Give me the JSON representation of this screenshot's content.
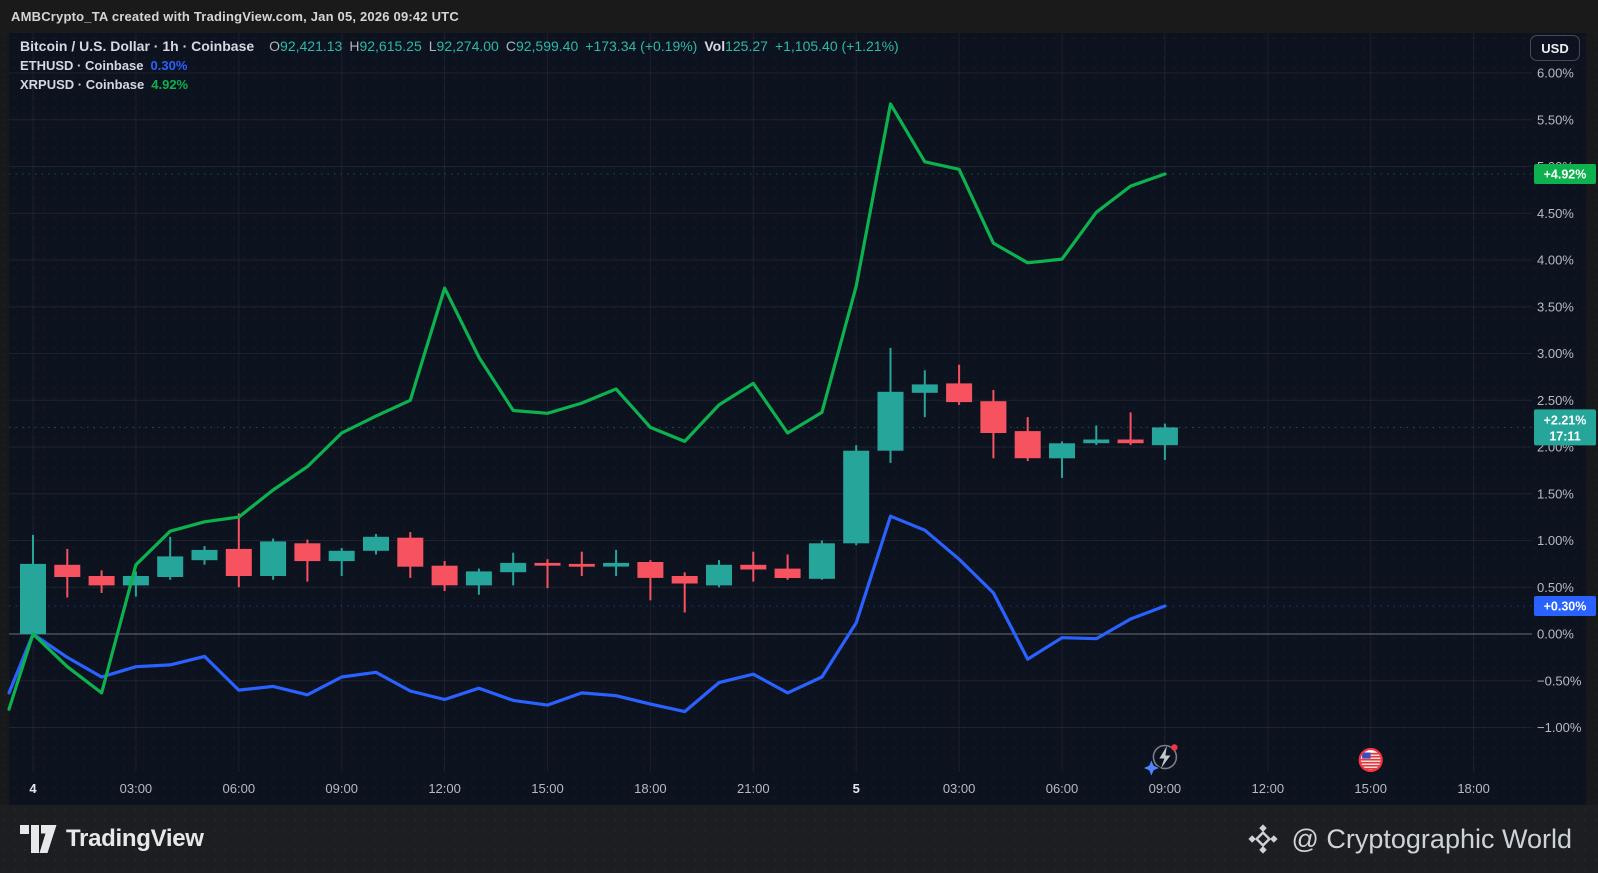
{
  "topbar": {
    "text": "AMBCrypto_TA created with TradingView.com, Jan 05, 2026 09:42 UTC"
  },
  "legend": {
    "symbol": "Bitcoin / U.S. Dollar · 1h · Coinbase",
    "ohlc": [
      {
        "k": "O",
        "v": "92,421.13"
      },
      {
        "k": "H",
        "v": "92,615.25"
      },
      {
        "k": "L",
        "v": "92,274.00"
      },
      {
        "k": "C",
        "v": "92,599.40"
      }
    ],
    "change": "+173.34 (+0.19%)",
    "vol_label": "Vol",
    "vol_value": "125.27",
    "vol_change": "+1,105.40 (+1.21%)",
    "compares": [
      {
        "symbol": "ETHUSD · Coinbase",
        "value": "0.30%",
        "color": "#2962ff"
      },
      {
        "symbol": "XRPUSD · Coinbase",
        "value": "4.92%",
        "color": "#0db24f"
      }
    ]
  },
  "currency_button": "USD",
  "price_axis": {
    "ticks": [
      {
        "label": "6.00%",
        "value": 6.0
      },
      {
        "label": "5.50%",
        "value": 5.5
      },
      {
        "label": "5.00%",
        "value": 5.0
      },
      {
        "label": "4.50%",
        "value": 4.5
      },
      {
        "label": "4.00%",
        "value": 4.0
      },
      {
        "label": "3.50%",
        "value": 3.5
      },
      {
        "label": "3.00%",
        "value": 3.0
      },
      {
        "label": "2.50%",
        "value": 2.5
      },
      {
        "label": "2.00%",
        "value": 2.0
      },
      {
        "label": "1.50%",
        "value": 1.5
      },
      {
        "label": "1.00%",
        "value": 1.0
      },
      {
        "label": "0.50%",
        "value": 0.5
      },
      {
        "label": "0.00%",
        "value": 0.0
      },
      {
        "label": "−0.50%",
        "value": -0.5
      },
      {
        "label": "−1.00%",
        "value": -1.0
      }
    ]
  },
  "time_axis": {
    "labels": [
      {
        "label": "4",
        "hour": 0,
        "major": true
      },
      {
        "label": "03:00",
        "hour": 3
      },
      {
        "label": "06:00",
        "hour": 6
      },
      {
        "label": "09:00",
        "hour": 9
      },
      {
        "label": "12:00",
        "hour": 12
      },
      {
        "label": "15:00",
        "hour": 15
      },
      {
        "label": "18:00",
        "hour": 18
      },
      {
        "label": "21:00",
        "hour": 21
      },
      {
        "label": "5",
        "hour": 24,
        "major": true
      },
      {
        "label": "03:00",
        "hour": 27
      },
      {
        "label": "06:00",
        "hour": 30
      },
      {
        "label": "09:00",
        "hour": 33
      },
      {
        "label": "12:00",
        "hour": 36
      },
      {
        "label": "15:00",
        "hour": 39
      },
      {
        "label": "18:00",
        "hour": 42
      }
    ]
  },
  "price_badges": [
    {
      "lines": [
        "+4.92%"
      ],
      "value": 4.92,
      "color": "#0db24f"
    },
    {
      "lines": [
        "+2.21%",
        "17:11"
      ],
      "value": 2.21,
      "color": "#26a69a"
    },
    {
      "lines": [
        "+0.30%"
      ],
      "value": 0.3,
      "color": "#2962ff"
    }
  ],
  "events": [
    {
      "icon": "flash-event-icon",
      "hour": 33
    },
    {
      "icon": "us-flag-icon",
      "hour": 39
    }
  ],
  "footer": {
    "brand": "TradingView",
    "credit": "@ Cryptographic World"
  },
  "chart_data": {
    "type": "candlestick_with_compare_lines",
    "title": "Bitcoin / U.S. Dollar · 1h · Coinbase vs ETHUSD and XRPUSD",
    "scale": "percent_change",
    "interval_minutes": 60,
    "first_bar_label": "4 (00:00)",
    "last_bar_label": "5 09:00",
    "ylim": [
      -1.35,
      6.15
    ],
    "grid": true,
    "candles": {
      "name": "BTCUSD",
      "up_color": "#26a69a",
      "down_color": "#f7525f",
      "last_close_pct": 2.21,
      "ohlc": [
        [
          0.0,
          1.06,
          -0.04,
          0.75
        ],
        [
          0.74,
          0.91,
          0.39,
          0.61
        ],
        [
          0.62,
          0.68,
          0.44,
          0.52
        ],
        [
          0.52,
          0.67,
          0.4,
          0.62
        ],
        [
          0.61,
          1.04,
          0.58,
          0.83
        ],
        [
          0.79,
          0.94,
          0.74,
          0.9
        ],
        [
          0.91,
          1.29,
          0.5,
          0.62
        ],
        [
          0.62,
          1.02,
          0.58,
          0.99
        ],
        [
          0.97,
          1.01,
          0.56,
          0.78
        ],
        [
          0.78,
          0.92,
          0.62,
          0.89
        ],
        [
          0.89,
          1.07,
          0.85,
          1.04
        ],
        [
          1.03,
          1.09,
          0.6,
          0.72
        ],
        [
          0.73,
          0.78,
          0.46,
          0.52
        ],
        [
          0.52,
          0.7,
          0.42,
          0.67
        ],
        [
          0.66,
          0.87,
          0.52,
          0.76
        ],
        [
          0.76,
          0.8,
          0.49,
          0.73
        ],
        [
          0.75,
          0.88,
          0.62,
          0.72
        ],
        [
          0.72,
          0.9,
          0.62,
          0.76
        ],
        [
          0.77,
          0.79,
          0.36,
          0.6
        ],
        [
          0.62,
          0.66,
          0.23,
          0.54
        ],
        [
          0.52,
          0.79,
          0.5,
          0.74
        ],
        [
          0.74,
          0.88,
          0.56,
          0.69
        ],
        [
          0.7,
          0.85,
          0.58,
          0.6
        ],
        [
          0.59,
          1.0,
          0.58,
          0.97
        ],
        [
          0.97,
          2.02,
          0.95,
          1.96
        ],
        [
          1.96,
          3.06,
          1.83,
          2.59
        ],
        [
          2.58,
          2.82,
          2.32,
          2.67
        ],
        [
          2.68,
          2.88,
          2.45,
          2.48
        ],
        [
          2.49,
          2.61,
          1.88,
          2.15
        ],
        [
          2.17,
          2.32,
          1.85,
          1.88
        ],
        [
          1.88,
          2.06,
          1.67,
          2.04
        ],
        [
          2.04,
          2.23,
          2.02,
          2.08
        ],
        [
          2.08,
          2.37,
          2.02,
          2.04
        ],
        [
          2.02,
          2.25,
          1.86,
          2.21
        ]
      ]
    },
    "series": [
      {
        "name": "ETHUSD",
        "color": "#2962ff",
        "last_value_pct": 0.3,
        "lead_in": -0.9,
        "values": [
          0.0,
          -0.25,
          -0.46,
          -0.35,
          -0.33,
          -0.24,
          -0.6,
          -0.56,
          -0.65,
          -0.46,
          -0.41,
          -0.61,
          -0.7,
          -0.58,
          -0.71,
          -0.76,
          -0.63,
          -0.66,
          -0.75,
          -0.83,
          -0.52,
          -0.43,
          -0.63,
          -0.46,
          0.12,
          1.26,
          1.11,
          0.8,
          0.44,
          -0.27,
          -0.04,
          -0.05,
          0.16,
          0.3
        ]
      },
      {
        "name": "XRPUSD",
        "color": "#0db24f",
        "last_value_pct": 4.92,
        "lead_in": -1.15,
        "values": [
          0.0,
          -0.35,
          -0.63,
          0.74,
          1.1,
          1.2,
          1.25,
          1.54,
          1.79,
          2.15,
          2.33,
          2.5,
          3.7,
          2.96,
          2.39,
          2.36,
          2.47,
          2.62,
          2.21,
          2.06,
          2.45,
          2.68,
          2.15,
          2.37,
          3.72,
          5.67,
          5.05,
          4.97,
          4.18,
          3.97,
          4.01,
          4.51,
          4.79,
          4.92
        ]
      }
    ]
  }
}
